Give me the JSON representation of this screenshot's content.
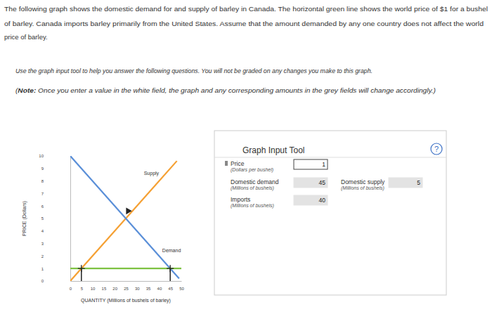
{
  "page": {
    "intro": [
      "The following graph shows the domestic demand for and supply of barley in Canada. The horizontal green line shows the world price of $1 for a bushel",
      "of barley. Canada imports barley primarily from the United States. Assume that the amount demanded by any one country does not affect the world",
      "price of barley."
    ],
    "instruction": "Use the graph input tool to help you answer the following questions. You will not be graded on any changes you make to this graph.",
    "note": {
      "open": "(",
      "label": "Note:",
      "text": " Once you enter a value in the white field, the graph and any corresponding amounts in the grey fields will change accordingly.)"
    }
  },
  "chart_data": {
    "type": "line",
    "xlabel": "QUANTITY (Millions of bushels of barley)",
    "ylabel": "PRICE (Dollars)",
    "xlim": [
      0,
      50
    ],
    "ylim": [
      0,
      10
    ],
    "xticks": [
      0,
      5,
      10,
      15,
      20,
      25,
      30,
      35,
      40,
      45,
      50
    ],
    "yticks": [
      0,
      1,
      2,
      3,
      4,
      5,
      6,
      7,
      8,
      9,
      10
    ],
    "series": [
      {
        "name": "Supply",
        "color": "#f5a033",
        "x": [
          0,
          48
        ],
        "values": [
          0,
          9.6
        ]
      },
      {
        "name": "Demand",
        "color": "#5a8fd8",
        "x": [
          0,
          49
        ],
        "values": [
          10,
          0.2
        ]
      },
      {
        "color": "#7dc242",
        "x": [
          0,
          50
        ],
        "values": [
          1,
          1
        ]
      },
      {
        "type": "scatter",
        "marker": "cross",
        "color": "#222222",
        "x": [
          5,
          45
        ],
        "values": [
          1,
          1
        ]
      },
      {
        "type": "scatter",
        "marker": "triangle",
        "color": "#222222",
        "x": [
          26
        ],
        "values": [
          5.6
        ]
      }
    ]
  },
  "input_tool": {
    "title": "Graph Input Tool",
    "help": "?",
    "fields": [
      {
        "label": "Price",
        "unit": "(Dollars per bushel)",
        "value": 1,
        "editable": true
      },
      {
        "label": "Domestic demand",
        "unit": "(Millions of bushels)",
        "value": 45,
        "editable": false
      },
      {
        "label": "Domestic supply",
        "unit": "(Millions of bushels)",
        "value": 5,
        "editable": false
      },
      {
        "label": "Imports",
        "unit": "(Millions of bushels)",
        "value": 40,
        "editable": false
      }
    ]
  }
}
